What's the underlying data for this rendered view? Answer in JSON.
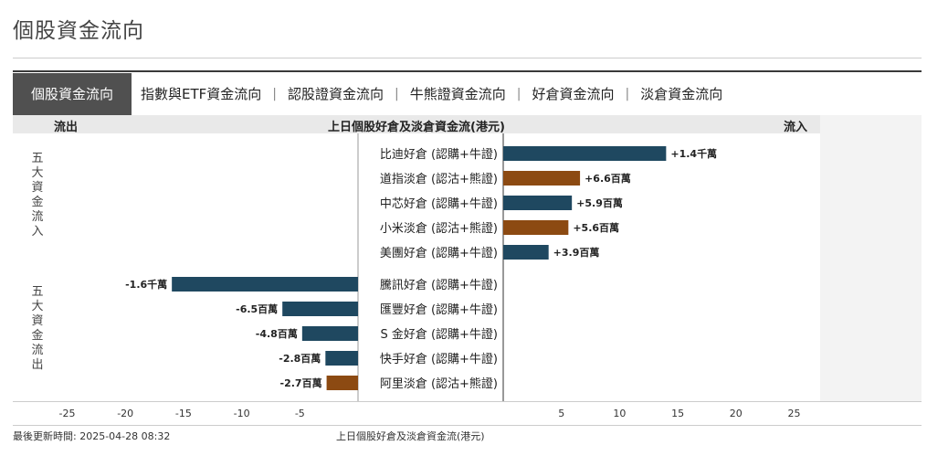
{
  "page": {
    "title": "個股資金流向"
  },
  "tabs": [
    {
      "label": "個股資金流向",
      "active": true
    },
    {
      "label": "指數與ETF資金流向",
      "active": false
    },
    {
      "label": "認股證資金流向",
      "active": false
    },
    {
      "label": "牛熊證資金流向",
      "active": false
    },
    {
      "label": "好倉資金流向",
      "active": false
    },
    {
      "label": "淡倉資金流向",
      "active": false
    }
  ],
  "tab_separator": "|",
  "header": {
    "left": "流出",
    "center": "上日個股好倉及淡倉資金流(港元)",
    "right": "流入"
  },
  "group_labels": {
    "inflow": "五大資金流入",
    "outflow": "五大資金流出"
  },
  "footer": {
    "updated": "最後更新時間: 2025-04-28 08:32",
    "caption": "上日個股好倉及淡倉資金流(港元)"
  },
  "colors": {
    "bull": "#1f4860",
    "bear": "#8c4a12",
    "axis": "#333333"
  },
  "chart_data": {
    "type": "bar",
    "orientation": "horizontal",
    "xlim": [
      -25,
      25
    ],
    "x_unit": "百萬",
    "x_ticks": [
      -25,
      -20,
      -15,
      -10,
      -5,
      5,
      10,
      15,
      20,
      25
    ],
    "rows": [
      {
        "label": "比迪好倉 (認購+牛證)",
        "value": 14,
        "value_label": "+1.4千萬",
        "type": "bull"
      },
      {
        "label": "道指淡倉 (認沽+熊證)",
        "value": 6.6,
        "value_label": "+6.6百萬",
        "type": "bear"
      },
      {
        "label": "中芯好倉 (認購+牛證)",
        "value": 5.9,
        "value_label": "+5.9百萬",
        "type": "bull"
      },
      {
        "label": "小米淡倉 (認沽+熊證)",
        "value": 5.6,
        "value_label": "+5.6百萬",
        "type": "bear"
      },
      {
        "label": "美團好倉 (認購+牛證)",
        "value": 3.9,
        "value_label": "+3.9百萬",
        "type": "bull"
      },
      {
        "label": "騰訊好倉 (認購+牛證)",
        "value": -16,
        "value_label": "-1.6千萬",
        "type": "bull"
      },
      {
        "label": "匯豐好倉 (認購+牛證)",
        "value": -6.5,
        "value_label": "-6.5百萬",
        "type": "bull"
      },
      {
        "label": "S 金好倉 (認購+牛證)",
        "value": -4.8,
        "value_label": "-4.8百萬",
        "type": "bull"
      },
      {
        "label": "快手好倉 (認購+牛證)",
        "value": -2.8,
        "value_label": "-2.8百萬",
        "type": "bull"
      },
      {
        "label": "阿里淡倉 (認沽+熊證)",
        "value": -2.7,
        "value_label": "-2.7百萬",
        "type": "bear"
      }
    ]
  }
}
